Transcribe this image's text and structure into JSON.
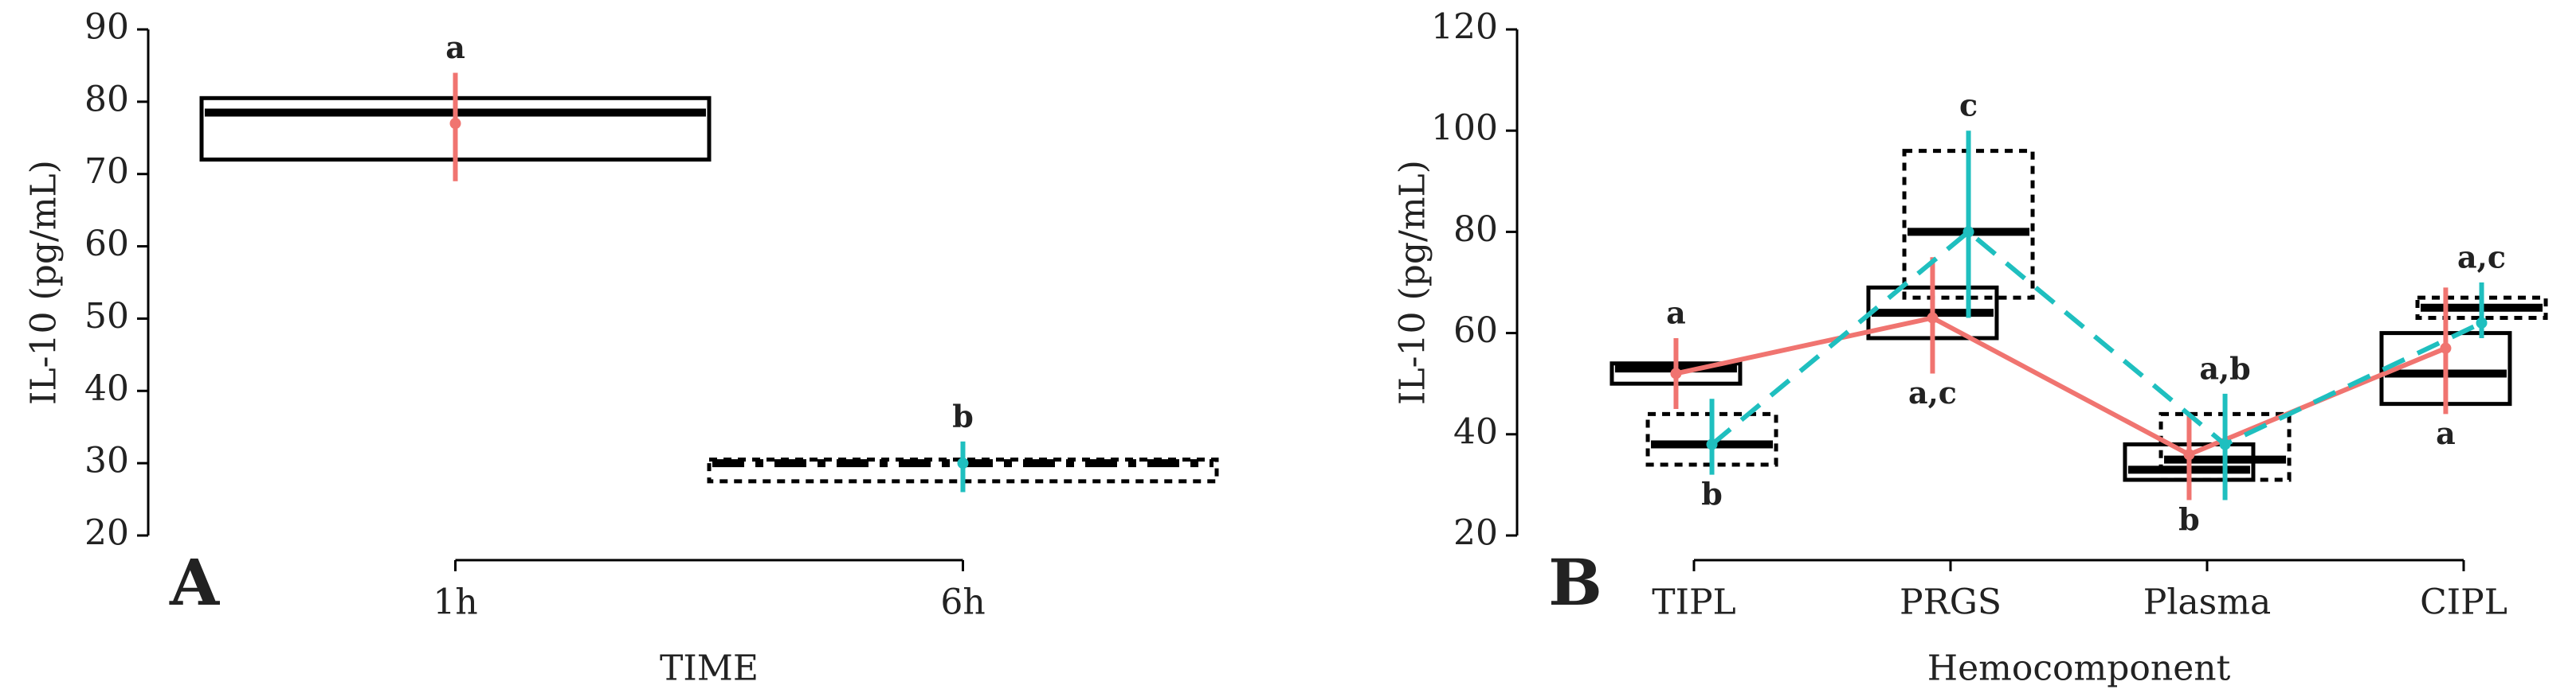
{
  "chart_data": [
    {
      "type": "box",
      "panel": "A",
      "xlabel": "TIME",
      "ylabel": "IL-10 (pg/mL)",
      "categories": [
        "1h",
        "6h"
      ],
      "ylim": [
        20,
        90
      ],
      "yticks": [
        20,
        30,
        40,
        50,
        60,
        70,
        80,
        90
      ],
      "connect": false,
      "series": [
        {
          "color": "#f07470",
          "box_style": "solid",
          "median_style": "solid",
          "q1": [
            72,
            null
          ],
          "median": [
            78.5,
            null
          ],
          "q3": [
            80.5,
            null
          ],
          "mean": [
            77,
            null
          ],
          "low": [
            69,
            null
          ],
          "high": [
            84,
            null
          ],
          "letters": [
            "a",
            null
          ],
          "letter_side": [
            "above",
            null
          ]
        },
        {
          "color": "#1fbfbf",
          "box_style": "dashed",
          "median_style": "dashdot",
          "q1": [
            null,
            27.5
          ],
          "median": [
            null,
            30
          ],
          "q3": [
            null,
            30.5
          ],
          "mean": [
            null,
            30
          ],
          "low": [
            null,
            26
          ],
          "high": [
            null,
            33
          ],
          "letters": [
            null,
            "b"
          ],
          "letter_side": [
            null,
            "above"
          ]
        }
      ]
    },
    {
      "type": "box",
      "panel": "B",
      "xlabel": "Hemocomponent",
      "ylabel": "IL-10 (pg/mL)",
      "categories": [
        "TIPL",
        "PRGS",
        "Plasma",
        "CIPL"
      ],
      "ylim": [
        20,
        120
      ],
      "yticks": [
        20,
        40,
        60,
        80,
        100,
        120
      ],
      "connect": true,
      "series": [
        {
          "color": "#f07470",
          "box_style": "solid",
          "median_style": "solid",
          "q1": [
            50,
            59,
            31,
            46
          ],
          "median": [
            53,
            64,
            33,
            52
          ],
          "q3": [
            54,
            69,
            38,
            60
          ],
          "mean": [
            52,
            63,
            36,
            57
          ],
          "low": [
            45,
            52,
            27,
            44
          ],
          "high": [
            59,
            75,
            44,
            69
          ],
          "letters": [
            "a",
            "a,c",
            "b",
            "a"
          ],
          "letter_side": [
            "above",
            "below",
            "below",
            "below"
          ]
        },
        {
          "color": "#1fbfbf",
          "box_style": "dashed",
          "median_style": "solid",
          "q1": [
            34,
            67,
            31,
            63
          ],
          "median": [
            38,
            80,
            35,
            65
          ],
          "q3": [
            44,
            96,
            44,
            67
          ],
          "mean": [
            38,
            80,
            38,
            62
          ],
          "low": [
            32,
            63,
            27,
            59
          ],
          "high": [
            47,
            100,
            48,
            70
          ],
          "letters": [
            "b",
            "c",
            "a,b",
            "a,c"
          ],
          "letter_side": [
            "below",
            "above",
            "above",
            "above"
          ]
        }
      ]
    }
  ]
}
